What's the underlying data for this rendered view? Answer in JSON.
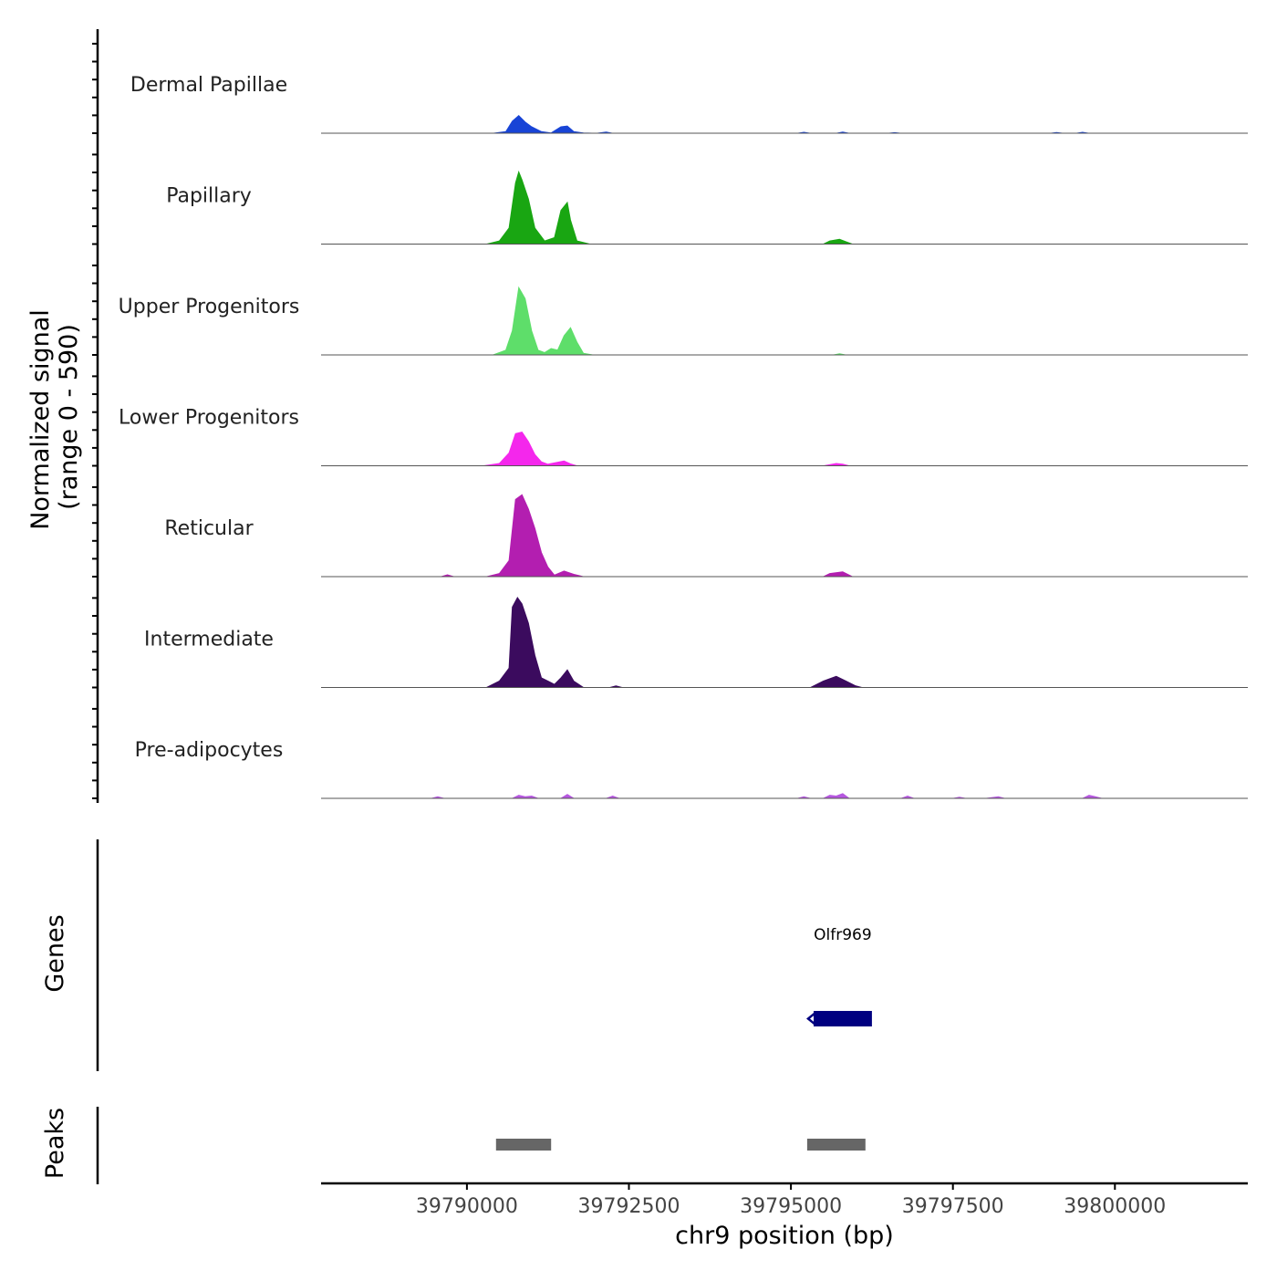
{
  "chart_data": {
    "type": "area",
    "title": "",
    "ylabel_line1": "Normalized signal",
    "ylabel_line2": "(range 0 - 590)",
    "y_range": [
      0,
      590
    ],
    "xlabel": "chr9 position (bp)",
    "x_range": [
      39787750,
      39802050
    ],
    "x_ticks": [
      39790000,
      39792500,
      39795000,
      39797500,
      39800000
    ],
    "x_tick_labels": [
      "39790000",
      "39792500",
      "39795000",
      "39797500",
      "39800000"
    ],
    "series": [
      {
        "name": "Dermal Papillae",
        "color": "#1844d6",
        "points": [
          [
            39787750,
            0
          ],
          [
            39790400,
            0
          ],
          [
            39790600,
            10
          ],
          [
            39790700,
            75
          ],
          [
            39790800,
            110
          ],
          [
            39790900,
            70
          ],
          [
            39791000,
            40
          ],
          [
            39791150,
            10
          ],
          [
            39791300,
            2
          ],
          [
            39791450,
            40
          ],
          [
            39791550,
            45
          ],
          [
            39791650,
            10
          ],
          [
            39791800,
            2
          ],
          [
            39792000,
            0
          ],
          [
            39792150,
            8
          ],
          [
            39792250,
            0
          ],
          [
            39795100,
            0
          ],
          [
            39795200,
            6
          ],
          [
            39795300,
            0
          ],
          [
            39795700,
            0
          ],
          [
            39795800,
            8
          ],
          [
            39795900,
            0
          ],
          [
            39796500,
            0
          ],
          [
            39796600,
            4
          ],
          [
            39796700,
            0
          ],
          [
            39799000,
            0
          ],
          [
            39799100,
            5
          ],
          [
            39799200,
            0
          ],
          [
            39799400,
            0
          ],
          [
            39799500,
            6
          ],
          [
            39799600,
            0
          ],
          [
            39802050,
            0
          ]
        ]
      },
      {
        "name": "Papillary",
        "color": "#19a612",
        "points": [
          [
            39787750,
            0
          ],
          [
            39790300,
            0
          ],
          [
            39790500,
            20
          ],
          [
            39790650,
            100
          ],
          [
            39790750,
            380
          ],
          [
            39790800,
            450
          ],
          [
            39790850,
            400
          ],
          [
            39790950,
            280
          ],
          [
            39791050,
            100
          ],
          [
            39791200,
            20
          ],
          [
            39791350,
            40
          ],
          [
            39791450,
            210
          ],
          [
            39791550,
            260
          ],
          [
            39791600,
            150
          ],
          [
            39791700,
            20
          ],
          [
            39791900,
            0
          ],
          [
            39795500,
            0
          ],
          [
            39795600,
            20
          ],
          [
            39795750,
            30
          ],
          [
            39795850,
            15
          ],
          [
            39795950,
            0
          ],
          [
            39802050,
            0
          ]
        ]
      },
      {
        "name": "Upper Progenitors",
        "color": "#5ede6a",
        "points": [
          [
            39787750,
            0
          ],
          [
            39790400,
            0
          ],
          [
            39790600,
            30
          ],
          [
            39790700,
            150
          ],
          [
            39790800,
            420
          ],
          [
            39790900,
            350
          ],
          [
            39791000,
            150
          ],
          [
            39791100,
            30
          ],
          [
            39791200,
            15
          ],
          [
            39791300,
            40
          ],
          [
            39791400,
            30
          ],
          [
            39791500,
            120
          ],
          [
            39791600,
            170
          ],
          [
            39791700,
            80
          ],
          [
            39791800,
            10
          ],
          [
            39791950,
            0
          ],
          [
            39795650,
            0
          ],
          [
            39795750,
            8
          ],
          [
            39795850,
            0
          ],
          [
            39802050,
            0
          ]
        ]
      },
      {
        "name": "Lower Progenitors",
        "color": "#f427ec",
        "points": [
          [
            39787750,
            0
          ],
          [
            39790250,
            0
          ],
          [
            39790500,
            15
          ],
          [
            39790650,
            80
          ],
          [
            39790750,
            200
          ],
          [
            39790850,
            210
          ],
          [
            39790950,
            150
          ],
          [
            39791050,
            70
          ],
          [
            39791150,
            25
          ],
          [
            39791250,
            10
          ],
          [
            39791500,
            30
          ],
          [
            39791600,
            12
          ],
          [
            39791700,
            0
          ],
          [
            39795500,
            0
          ],
          [
            39795700,
            15
          ],
          [
            39795800,
            10
          ],
          [
            39795900,
            0
          ],
          [
            39802050,
            0
          ]
        ]
      },
      {
        "name": "Reticular",
        "color": "#b31eb0",
        "points": [
          [
            39787750,
            0
          ],
          [
            39789600,
            0
          ],
          [
            39789700,
            12
          ],
          [
            39789800,
            0
          ],
          [
            39790300,
            0
          ],
          [
            39790500,
            20
          ],
          [
            39790650,
            100
          ],
          [
            39790750,
            480
          ],
          [
            39790850,
            510
          ],
          [
            39790950,
            420
          ],
          [
            39791050,
            300
          ],
          [
            39791150,
            150
          ],
          [
            39791250,
            60
          ],
          [
            39791350,
            10
          ],
          [
            39791500,
            35
          ],
          [
            39791650,
            15
          ],
          [
            39791800,
            0
          ],
          [
            39795500,
            0
          ],
          [
            39795600,
            20
          ],
          [
            39795800,
            30
          ],
          [
            39795950,
            0
          ],
          [
            39802050,
            0
          ]
        ]
      },
      {
        "name": "Intermediate",
        "color": "#3b0b5e",
        "points": [
          [
            39787750,
            0
          ],
          [
            39790300,
            0
          ],
          [
            39790500,
            40
          ],
          [
            39790650,
            120
          ],
          [
            39790700,
            500
          ],
          [
            39790780,
            560
          ],
          [
            39790850,
            520
          ],
          [
            39790950,
            400
          ],
          [
            39791050,
            200
          ],
          [
            39791150,
            60
          ],
          [
            39791250,
            40
          ],
          [
            39791350,
            20
          ],
          [
            39791450,
            60
          ],
          [
            39791550,
            110
          ],
          [
            39791650,
            40
          ],
          [
            39791800,
            0
          ],
          [
            39792200,
            0
          ],
          [
            39792300,
            10
          ],
          [
            39792400,
            0
          ],
          [
            39795300,
            0
          ],
          [
            39795500,
            40
          ],
          [
            39795700,
            70
          ],
          [
            39795850,
            40
          ],
          [
            39796000,
            10
          ],
          [
            39796100,
            0
          ],
          [
            39802050,
            0
          ]
        ]
      },
      {
        "name": "Pre-adipocytes",
        "color": "#b657e0",
        "points": [
          [
            39787750,
            0
          ],
          [
            39789450,
            0
          ],
          [
            39789550,
            10
          ],
          [
            39789650,
            0
          ],
          [
            39790700,
            0
          ],
          [
            39790800,
            20
          ],
          [
            39790900,
            10
          ],
          [
            39791000,
            15
          ],
          [
            39791100,
            0
          ],
          [
            39791450,
            0
          ],
          [
            39791550,
            25
          ],
          [
            39791650,
            0
          ],
          [
            39792150,
            0
          ],
          [
            39792250,
            15
          ],
          [
            39792350,
            0
          ],
          [
            39795100,
            0
          ],
          [
            39795200,
            10
          ],
          [
            39795300,
            0
          ],
          [
            39795500,
            0
          ],
          [
            39795600,
            20
          ],
          [
            39795700,
            15
          ],
          [
            39795800,
            30
          ],
          [
            39795900,
            0
          ],
          [
            39796700,
            0
          ],
          [
            39796800,
            15
          ],
          [
            39796900,
            0
          ],
          [
            39797500,
            0
          ],
          [
            39797600,
            8
          ],
          [
            39797700,
            0
          ],
          [
            39798000,
            0
          ],
          [
            39798200,
            10
          ],
          [
            39798300,
            0
          ],
          [
            39799500,
            0
          ],
          [
            39799600,
            20
          ],
          [
            39799700,
            10
          ],
          [
            39799800,
            0
          ],
          [
            39802050,
            0
          ]
        ]
      }
    ],
    "genes": {
      "panel_label": "Genes",
      "items": [
        {
          "name": "Olfr969",
          "start": 39795350,
          "end": 39796250,
          "strand": "-",
          "color": "#000080"
        }
      ]
    },
    "peaks": {
      "panel_label": "Peaks",
      "color": "#666666",
      "regions": [
        [
          39790450,
          39791300
        ],
        [
          39795250,
          39796150
        ]
      ]
    }
  }
}
